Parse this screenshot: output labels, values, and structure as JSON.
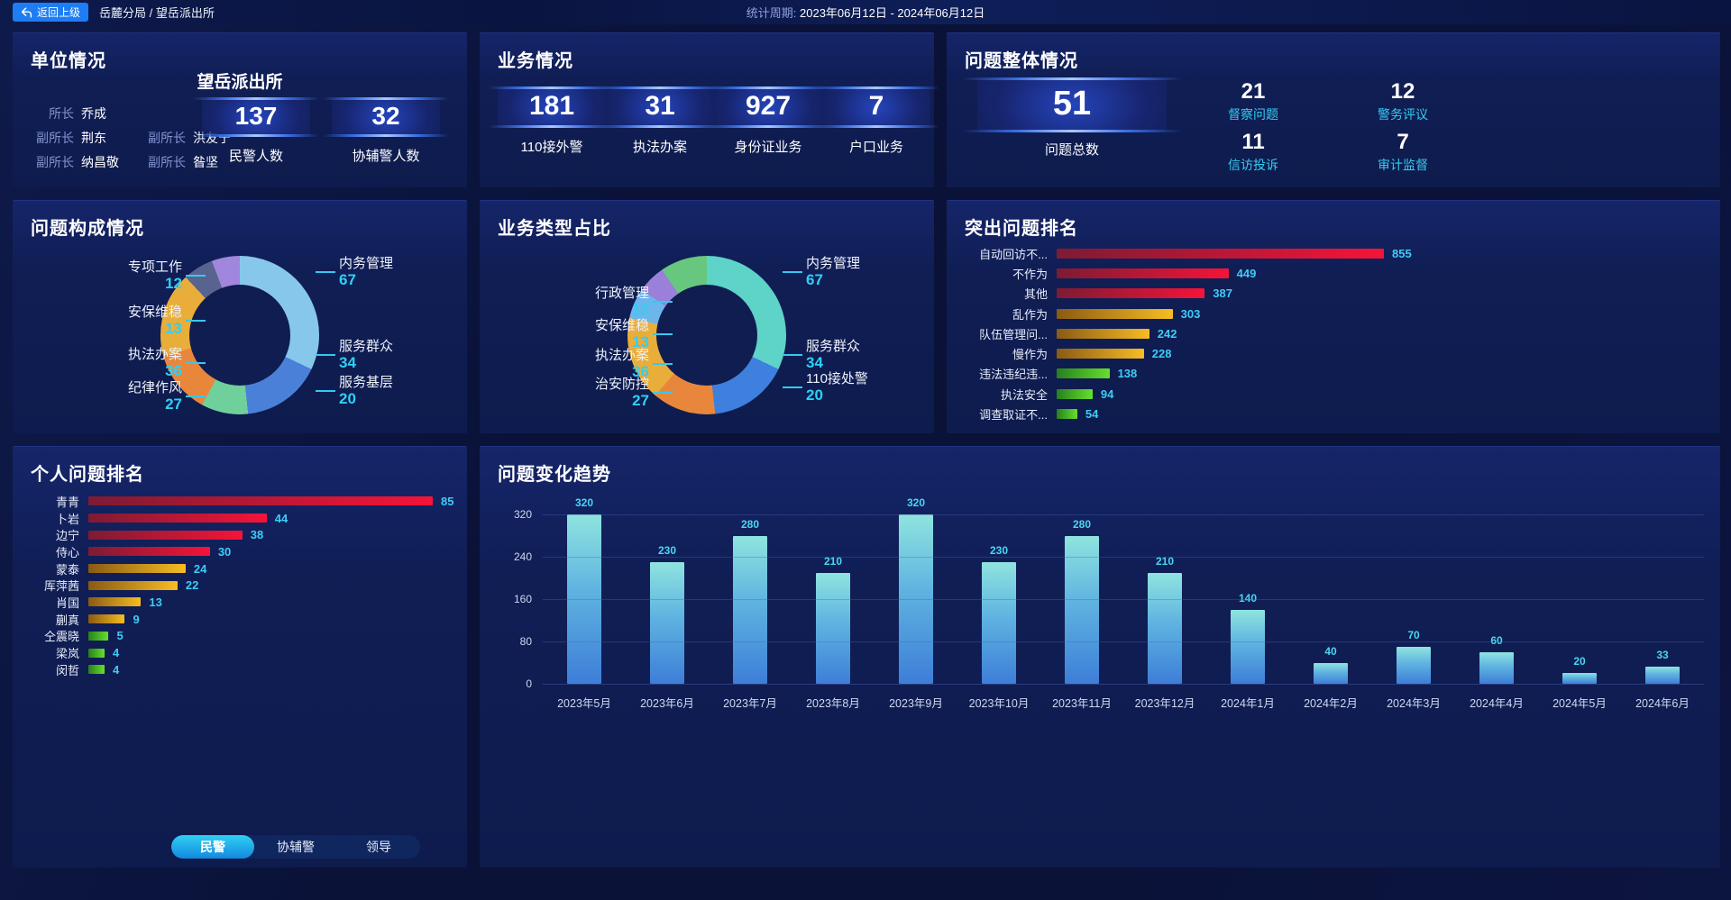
{
  "top_bar": {
    "back_button": "返回上级",
    "breadcrumb": "岳麓分局 / 望岳派出所",
    "period_label": "统计周期: ",
    "period_value": "2023年06月12日 - 2024年06月12日"
  },
  "unit": {
    "title": "单位情况",
    "station_name": "望岳派出所",
    "leaders": [
      {
        "role": "所长",
        "name": "乔成"
      },
      {
        "role": "副所长",
        "name": "荆东"
      },
      {
        "role": "副所长",
        "name": "洪友宁"
      },
      {
        "role": "副所长",
        "name": "纳昌敬"
      },
      {
        "role": "副所长",
        "name": "昝坚"
      }
    ],
    "stats": [
      {
        "value": 137,
        "label": "民警人数"
      },
      {
        "value": 32,
        "label": "协辅警人数"
      }
    ]
  },
  "business": {
    "title": "业务情况",
    "stats": [
      {
        "value": 181,
        "label": "110接外警"
      },
      {
        "value": 31,
        "label": "执法办案"
      },
      {
        "value": 927,
        "label": "身份证业务"
      },
      {
        "value": 7,
        "label": "户口业务"
      }
    ]
  },
  "problem_overview": {
    "title": "问题整体情况",
    "total": {
      "value": 51,
      "label": "问题总数"
    },
    "stats": [
      {
        "value": 21,
        "label": "督察问题"
      },
      {
        "value": 12,
        "label": "警务评议"
      },
      {
        "value": 11,
        "label": "信访投诉"
      },
      {
        "value": 7,
        "label": "审计监督"
      }
    ]
  },
  "problem_composition": {
    "title": "问题构成情况",
    "segments": [
      {
        "name": "内务管理",
        "value": 67,
        "color": "#88c7ec",
        "side": "right"
      },
      {
        "name": "服务群众",
        "value": 34,
        "color": "#4a80d8",
        "side": "right"
      },
      {
        "name": "服务基层",
        "value": 20,
        "color": "#6fd09c",
        "side": "right"
      },
      {
        "name": "纪律作风",
        "value": 27,
        "color": "#e8873c",
        "side": "left"
      },
      {
        "name": "执法办案",
        "value": 36,
        "color": "#e9ad3a",
        "side": "left"
      },
      {
        "name": "安保维稳",
        "value": 13,
        "color": "#59638f",
        "side": "left"
      },
      {
        "name": "专项工作",
        "value": 12,
        "color": "#a086dc",
        "side": "left"
      }
    ]
  },
  "business_type": {
    "title": "业务类型占比",
    "segments": [
      {
        "name": "内务管理",
        "value": 67,
        "color": "#5ed3c8",
        "side": "right"
      },
      {
        "name": "服务群众",
        "value": 34,
        "color": "#3f7fdd",
        "side": "right"
      },
      {
        "name": "治安防控",
        "value": 27,
        "color": "#e8873c",
        "side": "left"
      },
      {
        "name": "执法办案",
        "value": 36,
        "color": "#e9ad3a",
        "side": "left"
      },
      {
        "name": "安保维稳",
        "value": 13,
        "color": "#6db6ec",
        "side": "left"
      },
      {
        "name": "行政管理",
        "value": 12,
        "color": "#9a80d8",
        "side": "left"
      },
      {
        "name": "110接处警",
        "value": 20,
        "color": "#67c77f",
        "side": "right"
      }
    ]
  },
  "top_problems": {
    "title": "突出问题排名",
    "max": 855,
    "bars": [
      {
        "label": "自动回访不...",
        "value": 855,
        "tier": "red"
      },
      {
        "label": "不作为",
        "value": 449,
        "tier": "red"
      },
      {
        "label": "其他",
        "value": 387,
        "tier": "red"
      },
      {
        "label": "乱作为",
        "value": 303,
        "tier": "orange"
      },
      {
        "label": "队伍管理问...",
        "value": 242,
        "tier": "orange"
      },
      {
        "label": "慢作为",
        "value": 228,
        "tier": "orange"
      },
      {
        "label": "违法违纪违...",
        "value": 138,
        "tier": "green"
      },
      {
        "label": "执法安全",
        "value": 94,
        "tier": "green"
      },
      {
        "label": "调查取证不...",
        "value": 54,
        "tier": "green"
      }
    ]
  },
  "personal_ranking": {
    "title": "个人问题排名",
    "max": 85,
    "bars": [
      {
        "label": "青青",
        "value": 85,
        "tier": "red"
      },
      {
        "label": "卜岩",
        "value": 44,
        "tier": "red"
      },
      {
        "label": "边宁",
        "value": 38,
        "tier": "red"
      },
      {
        "label": "侍心",
        "value": 30,
        "tier": "red"
      },
      {
        "label": "蒙泰",
        "value": 24,
        "tier": "orange"
      },
      {
        "label": "厍萍茜",
        "value": 22,
        "tier": "orange"
      },
      {
        "label": "肖国",
        "value": 13,
        "tier": "orange"
      },
      {
        "label": "蒯真",
        "value": 9,
        "tier": "orange"
      },
      {
        "label": "仝震晓",
        "value": 5,
        "tier": "green"
      },
      {
        "label": "梁岚",
        "value": 4,
        "tier": "green"
      },
      {
        "label": "闵哲",
        "value": 4,
        "tier": "green"
      }
    ],
    "tabs": [
      {
        "label": "民警",
        "active": true
      },
      {
        "label": "协辅警",
        "active": false
      },
      {
        "label": "领导",
        "active": false
      }
    ]
  },
  "trend": {
    "title": "问题变化趋势",
    "categories": [
      "2023年5月",
      "2023年6月",
      "2023年7月",
      "2023年8月",
      "2023年9月",
      "2023年10月",
      "2023年11月",
      "2023年12月",
      "2024年1月",
      "2024年2月",
      "2024年3月",
      "2024年4月",
      "2024年5月",
      "2024年6月"
    ],
    "values": [
      320,
      230,
      280,
      210,
      320,
      230,
      280,
      210,
      140,
      40,
      70,
      60,
      20,
      33
    ],
    "yticks": [
      0,
      80,
      160,
      240,
      320
    ],
    "ymax": 320
  },
  "palettes": {
    "red": [
      "#7d1b33",
      "#f51438"
    ],
    "orange": [
      "#8a5a12",
      "#f7bd24"
    ],
    "green": [
      "#27801d",
      "#66df2e"
    ],
    "trend_bar_top": "#8fe4df",
    "trend_bar_bottom": "#3d7ed8",
    "accent_cyan": "#35cdf2",
    "back_button_blue": "#1e7df2"
  },
  "chart_data": [
    {
      "type": "pie",
      "title": "问题构成情况",
      "labels": [
        "内务管理",
        "服务群众",
        "服务基层",
        "纪律作风",
        "执法办案",
        "安保维稳",
        "专项工作"
      ],
      "values": [
        67,
        34,
        20,
        27,
        36,
        13,
        12
      ]
    },
    {
      "type": "pie",
      "title": "业务类型占比",
      "labels": [
        "内务管理",
        "服务群众",
        "110接处警",
        "治安防控",
        "执法办案",
        "安保维稳",
        "行政管理"
      ],
      "values": [
        67,
        34,
        20,
        27,
        36,
        13,
        12
      ]
    },
    {
      "type": "bar",
      "title": "突出问题排名",
      "orientation": "horizontal",
      "categories": [
        "自动回访不...",
        "不作为",
        "其他",
        "乱作为",
        "队伍管理问...",
        "慢作为",
        "违法违纪违...",
        "执法安全",
        "调查取证不..."
      ],
      "values": [
        855,
        449,
        387,
        303,
        242,
        228,
        138,
        94,
        54
      ]
    },
    {
      "type": "bar",
      "title": "个人问题排名",
      "orientation": "horizontal",
      "categories": [
        "青青",
        "卜岩",
        "边宁",
        "侍心",
        "蒙泰",
        "厍萍茜",
        "肖国",
        "蒯真",
        "仝震晓",
        "梁岚",
        "闵哲"
      ],
      "values": [
        85,
        44,
        38,
        30,
        24,
        22,
        13,
        9,
        5,
        4,
        4
      ]
    },
    {
      "type": "bar",
      "title": "问题变化趋势",
      "orientation": "vertical",
      "categories": [
        "2023年5月",
        "2023年6月",
        "2023年7月",
        "2023年8月",
        "2023年9月",
        "2023年10月",
        "2023年11月",
        "2023年12月",
        "2024年1月",
        "2024年2月",
        "2024年3月",
        "2024年4月",
        "2024年5月",
        "2024年6月"
      ],
      "values": [
        320,
        230,
        280,
        210,
        320,
        230,
        280,
        210,
        140,
        40,
        70,
        60,
        20,
        33
      ],
      "ylim": [
        0,
        320
      ]
    }
  ]
}
